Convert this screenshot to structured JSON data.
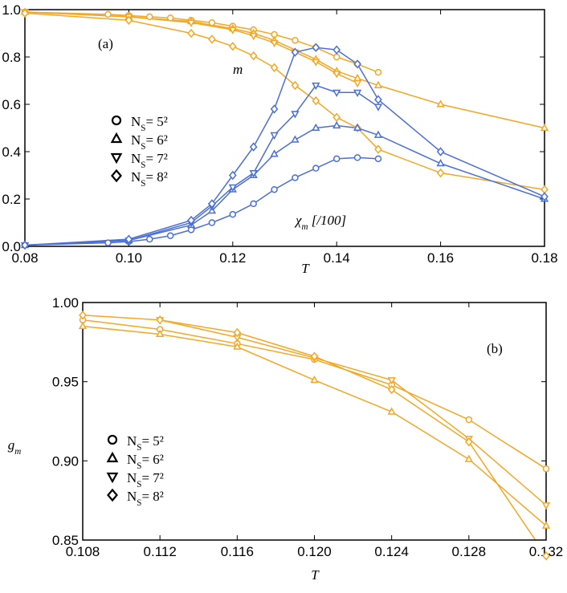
{
  "chart_data": [
    {
      "type": "line",
      "annotations": [
        "(a)",
        "m",
        "χm [/100]"
      ],
      "xlabel": "T",
      "xlim": [
        0.08,
        0.18
      ],
      "ylim": [
        0,
        1
      ],
      "xticks": [
        {
          "value": 0.08,
          "label": "0.08"
        },
        {
          "value": 0.1,
          "label": "0.10"
        },
        {
          "value": 0.12,
          "label": "0.12"
        },
        {
          "value": 0.14,
          "label": "0.14"
        },
        {
          "value": 0.16,
          "label": "0.16"
        },
        {
          "value": 0.18,
          "label": "0.18"
        }
      ],
      "yticks": [
        {
          "value": 0,
          "label": "0.0"
        },
        {
          "value": 0.2,
          "label": "0.2"
        },
        {
          "value": 0.4,
          "label": "0.4"
        },
        {
          "value": 0.6,
          "label": "0.6"
        },
        {
          "value": 0.8,
          "label": "0.8"
        },
        {
          "value": 1,
          "label": "1.0"
        }
      ],
      "legend": [
        {
          "name": "NS= 5²",
          "marker": "circle"
        },
        {
          "name": "NS= 6²",
          "marker": "triangle-up"
        },
        {
          "name": "NS= 7²",
          "marker": "triangle-down"
        },
        {
          "name": "NS= 8²",
          "marker": "diamond"
        }
      ],
      "series": [
        {
          "color": "#f5a623",
          "marker": "circle",
          "x": [
            0.08,
            0.096,
            0.1,
            0.104,
            0.108,
            0.112,
            0.116,
            0.12,
            0.124,
            0.128,
            0.132,
            0.136,
            0.14,
            0.144,
            0.148
          ],
          "values": [
            0.99,
            0.98,
            0.975,
            0.97,
            0.965,
            0.955,
            0.945,
            0.93,
            0.915,
            0.895,
            0.87,
            0.84,
            0.8,
            0.77,
            0.735
          ]
        },
        {
          "color": "#f5a623",
          "marker": "triangle-up",
          "x": [
            0.08,
            0.1,
            0.112,
            0.12,
            0.124,
            0.128,
            0.136,
            0.14,
            0.144,
            0.148,
            0.16,
            0.18
          ],
          "values": [
            0.99,
            0.97,
            0.95,
            0.92,
            0.9,
            0.87,
            0.79,
            0.74,
            0.71,
            0.68,
            0.6,
            0.5
          ]
        },
        {
          "color": "#f5a623",
          "marker": "triangle-down",
          "x": [
            0.08,
            0.1,
            0.112,
            0.12,
            0.124,
            0.128,
            0.132,
            0.136,
            0.14,
            0.144
          ],
          "values": [
            0.99,
            0.97,
            0.945,
            0.915,
            0.89,
            0.86,
            0.82,
            0.78,
            0.73,
            0.69
          ]
        },
        {
          "color": "#f5a623",
          "marker": "diamond",
          "x": [
            0.08,
            0.1,
            0.112,
            0.116,
            0.12,
            0.124,
            0.128,
            0.132,
            0.136,
            0.14,
            0.144,
            0.148,
            0.16,
            0.18
          ],
          "values": [
            0.985,
            0.955,
            0.9,
            0.875,
            0.845,
            0.805,
            0.755,
            0.68,
            0.615,
            0.545,
            0.5,
            0.41,
            0.31,
            0.24
          ]
        },
        {
          "color": "#4a6fd6",
          "marker": "circle",
          "x": [
            0.08,
            0.096,
            0.1,
            0.104,
            0.108,
            0.112,
            0.116,
            0.12,
            0.124,
            0.128,
            0.132,
            0.136,
            0.14,
            0.144,
            0.148
          ],
          "values": [
            0.005,
            0.015,
            0.02,
            0.03,
            0.045,
            0.07,
            0.1,
            0.135,
            0.18,
            0.24,
            0.29,
            0.33,
            0.37,
            0.375,
            0.37
          ]
        },
        {
          "color": "#4a6fd6",
          "marker": "triangle-up",
          "x": [
            0.08,
            0.1,
            0.112,
            0.116,
            0.12,
            0.124,
            0.128,
            0.132,
            0.136,
            0.14,
            0.144,
            0.148,
            0.16,
            0.18
          ],
          "values": [
            0.005,
            0.025,
            0.09,
            0.15,
            0.24,
            0.3,
            0.39,
            0.45,
            0.5,
            0.51,
            0.5,
            0.47,
            0.35,
            0.2
          ]
        },
        {
          "color": "#4a6fd6",
          "marker": "triangle-down",
          "x": [
            0.08,
            0.1,
            0.112,
            0.116,
            0.12,
            0.124,
            0.128,
            0.132,
            0.136,
            0.14,
            0.144,
            0.148
          ],
          "values": [
            0.005,
            0.025,
            0.1,
            0.17,
            0.25,
            0.31,
            0.47,
            0.56,
            0.68,
            0.65,
            0.65,
            0.59
          ]
        },
        {
          "color": "#4a6fd6",
          "marker": "diamond",
          "x": [
            0.08,
            0.1,
            0.112,
            0.116,
            0.12,
            0.124,
            0.128,
            0.132,
            0.136,
            0.14,
            0.144,
            0.148,
            0.16,
            0.18
          ],
          "values": [
            0.005,
            0.03,
            0.11,
            0.18,
            0.3,
            0.42,
            0.58,
            0.82,
            0.84,
            0.83,
            0.77,
            0.62,
            0.4,
            0.21
          ]
        }
      ]
    },
    {
      "type": "line",
      "annotations": [
        "(b)"
      ],
      "xlabel": "T",
      "ylabel": "gm",
      "xlim": [
        0.108,
        0.132
      ],
      "ylim": [
        0.85,
        1
      ],
      "xticks": [
        0.108,
        0.112,
        0.116,
        {
          "value": 0.12,
          "label": "0.120"
        },
        0.124,
        0.128,
        0.132
      ],
      "yticks": [
        {
          "value": 0.85,
          "label": "0.85"
        },
        {
          "value": 0.9,
          "label": "0.90"
        },
        {
          "value": 0.95,
          "label": "0.95"
        },
        {
          "value": 1,
          "label": "1.00"
        }
      ],
      "legend": [
        {
          "name": "NS= 5²",
          "marker": "circle"
        },
        {
          "name": "NS= 6²",
          "marker": "triangle-up"
        },
        {
          "name": "NS= 7²",
          "marker": "triangle-down"
        },
        {
          "name": "NS= 8²",
          "marker": "diamond"
        }
      ],
      "series": [
        {
          "color": "#f5a623",
          "marker": "circle",
          "x": [
            0.108,
            0.112,
            0.116,
            0.12,
            0.124,
            0.128,
            0.132
          ],
          "values": [
            0.989,
            0.983,
            0.974,
            0.964,
            0.948,
            0.926,
            0.895
          ]
        },
        {
          "color": "#f5a623",
          "marker": "triangle-up",
          "x": [
            0.108,
            0.112,
            0.116,
            0.12,
            0.124,
            0.128,
            0.132
          ],
          "values": [
            0.985,
            0.98,
            0.972,
            0.951,
            0.931,
            0.901,
            0.859
          ]
        },
        {
          "color": "#f5a623",
          "marker": "triangle-down",
          "x": [
            0.112,
            0.116,
            0.12,
            0.124,
            0.128,
            0.132
          ],
          "values": [
            0.989,
            0.978,
            0.965,
            0.951,
            0.914,
            0.872
          ]
        },
        {
          "color": "#f5a623",
          "marker": "diamond",
          "x": [
            0.108,
            0.112,
            0.116,
            0.12,
            0.124,
            0.128,
            0.132
          ],
          "values": [
            0.992,
            0.989,
            0.981,
            0.966,
            0.945,
            0.912,
            0.84
          ]
        }
      ]
    }
  ]
}
